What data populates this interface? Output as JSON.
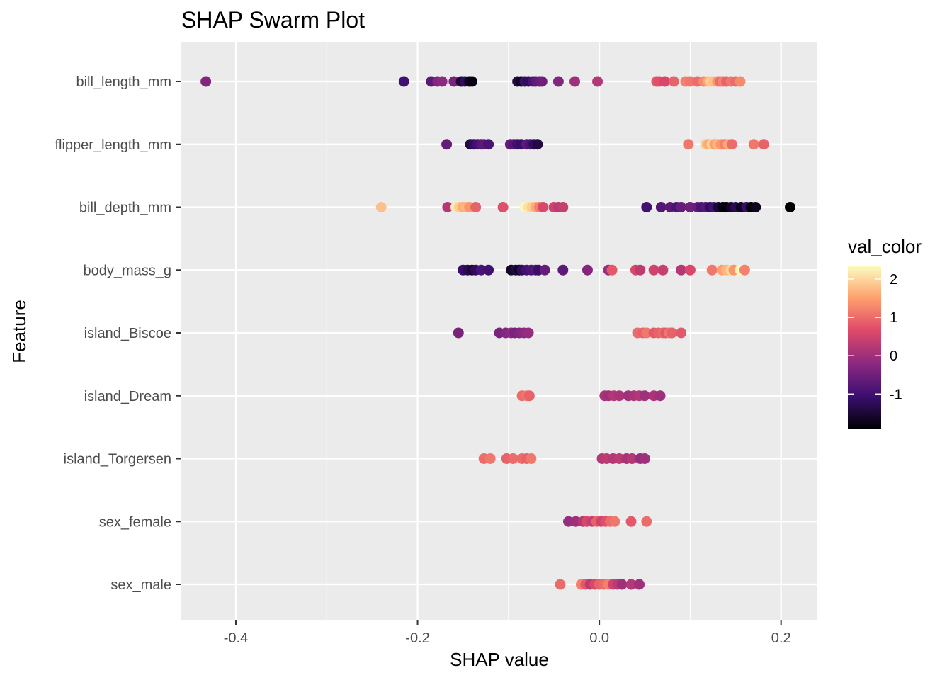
{
  "chart_data": {
    "type": "scatter",
    "title": "SHAP Swarm Plot",
    "xlabel": "SHAP value",
    "ylabel": "Feature",
    "xlim": [
      -0.46,
      0.24
    ],
    "xticks": [
      -0.4,
      -0.2,
      0.0,
      0.2
    ],
    "xtick_labels": [
      "-0.4",
      "-0.2",
      "0.0",
      "0.2"
    ],
    "grid": true,
    "legend": {
      "title": "val_color",
      "position": "right",
      "range": [
        -1.9,
        2.35
      ],
      "ticks": [
        -1,
        0,
        1,
        2
      ],
      "tick_labels": [
        "-1",
        "0",
        "1",
        "2"
      ],
      "palette": [
        "#000004",
        "#3b0f70",
        "#8c2981",
        "#de4968",
        "#fe9f6d",
        "#fcfdbf"
      ]
    },
    "categories": [
      "bill_length_mm",
      "flipper_length_mm",
      "bill_depth_mm",
      "body_mass_g",
      "island_Biscoe",
      "island_Dream",
      "island_Torgersen",
      "sex_female",
      "sex_male"
    ],
    "series": [
      {
        "feature": "bill_length_mm",
        "points": [
          [
            -0.433,
            -0.3
          ],
          [
            -0.215,
            -1.0
          ],
          [
            -0.185,
            -0.7
          ],
          [
            -0.178,
            -0.3
          ],
          [
            -0.173,
            -0.2
          ],
          [
            -0.16,
            -0.4
          ],
          [
            -0.152,
            -1.5
          ],
          [
            -0.148,
            -1.2
          ],
          [
            -0.143,
            -1.7
          ],
          [
            -0.14,
            -1.8
          ],
          [
            -0.09,
            -1.4
          ],
          [
            -0.086,
            -1.7
          ],
          [
            -0.082,
            -1.1
          ],
          [
            -0.078,
            -1.2
          ],
          [
            -0.073,
            -0.9
          ],
          [
            -0.07,
            -0.7
          ],
          [
            -0.066,
            -0.6
          ],
          [
            -0.063,
            -0.5
          ],
          [
            -0.045,
            -0.3
          ],
          [
            -0.027,
            0.0
          ],
          [
            -0.002,
            0.2
          ],
          [
            0.063,
            0.8
          ],
          [
            0.066,
            0.7
          ],
          [
            0.072,
            0.6
          ],
          [
            0.082,
            0.9
          ],
          [
            0.095,
            1.2
          ],
          [
            0.1,
            1.1
          ],
          [
            0.108,
            1.0
          ],
          [
            0.115,
            1.3
          ],
          [
            0.12,
            1.6
          ],
          [
            0.123,
            2.0
          ],
          [
            0.125,
            1.8
          ],
          [
            0.13,
            1.4
          ],
          [
            0.133,
            1.0
          ],
          [
            0.136,
            1.2
          ],
          [
            0.14,
            0.9
          ],
          [
            0.145,
            1.1
          ],
          [
            0.15,
            1.0
          ],
          [
            0.155,
            1.3
          ]
        ]
      },
      {
        "feature": "flipper_length_mm",
        "points": [
          [
            -0.168,
            -0.6
          ],
          [
            -0.142,
            -1.4
          ],
          [
            -0.138,
            -1.2
          ],
          [
            -0.134,
            -1.0
          ],
          [
            -0.13,
            -0.8
          ],
          [
            -0.127,
            -0.7
          ],
          [
            -0.122,
            -0.9
          ],
          [
            -0.098,
            -0.6
          ],
          [
            -0.094,
            -0.8
          ],
          [
            -0.09,
            -1.0
          ],
          [
            -0.086,
            -1.1
          ],
          [
            -0.08,
            -0.7
          ],
          [
            -0.076,
            -0.9
          ],
          [
            -0.072,
            -1.2
          ],
          [
            -0.068,
            -1.4
          ],
          [
            0.098,
            1.1
          ],
          [
            0.117,
            1.9
          ],
          [
            0.12,
            1.6
          ],
          [
            0.124,
            2.0
          ],
          [
            0.127,
            1.5
          ],
          [
            0.13,
            1.7
          ],
          [
            0.134,
            1.4
          ],
          [
            0.138,
            1.2
          ],
          [
            0.142,
            1.6
          ],
          [
            0.146,
            1.0
          ],
          [
            0.17,
            1.1
          ],
          [
            0.181,
            0.9
          ]
        ]
      },
      {
        "feature": "bill_depth_mm",
        "points": [
          [
            -0.24,
            1.8
          ],
          [
            -0.167,
            0.2
          ],
          [
            -0.158,
            2.2
          ],
          [
            -0.154,
            1.9
          ],
          [
            -0.15,
            1.6
          ],
          [
            -0.147,
            1.7
          ],
          [
            -0.143,
            1.4
          ],
          [
            -0.136,
            0.9
          ],
          [
            -0.106,
            0.7
          ],
          [
            -0.082,
            2.3
          ],
          [
            -0.078,
            2.1
          ],
          [
            -0.074,
            1.9
          ],
          [
            -0.07,
            1.6
          ],
          [
            -0.066,
            1.2
          ],
          [
            -0.062,
            0.6
          ],
          [
            -0.05,
            0.5
          ],
          [
            -0.045,
            0.3
          ],
          [
            -0.04,
            0.4
          ],
          [
            0.052,
            -1.0
          ],
          [
            0.068,
            -0.8
          ],
          [
            0.078,
            -0.7
          ],
          [
            0.085,
            -0.9
          ],
          [
            0.09,
            -0.6
          ],
          [
            0.1,
            -0.5
          ],
          [
            0.108,
            -0.6
          ],
          [
            0.112,
            -0.9
          ],
          [
            0.117,
            -0.8
          ],
          [
            0.122,
            -1.2
          ],
          [
            0.126,
            -1.0
          ],
          [
            0.131,
            -1.5
          ],
          [
            0.136,
            -1.8
          ],
          [
            0.14,
            -1.9
          ],
          [
            0.145,
            -1.6
          ],
          [
            0.15,
            -1.3
          ],
          [
            0.156,
            -1.7
          ],
          [
            0.162,
            -1.1
          ],
          [
            0.167,
            -1.9
          ],
          [
            0.172,
            -1.7
          ],
          [
            0.21,
            -1.9
          ]
        ]
      },
      {
        "feature": "body_mass_g",
        "points": [
          [
            -0.15,
            -1.1
          ],
          [
            -0.145,
            -1.3
          ],
          [
            -0.14,
            -1.5
          ],
          [
            -0.136,
            -1.2
          ],
          [
            -0.13,
            -0.9
          ],
          [
            -0.122,
            -1.0
          ],
          [
            -0.097,
            -1.6
          ],
          [
            -0.092,
            -1.4
          ],
          [
            -0.088,
            -1.7
          ],
          [
            -0.085,
            -1.2
          ],
          [
            -0.08,
            -1.0
          ],
          [
            -0.075,
            -0.9
          ],
          [
            -0.07,
            -0.8
          ],
          [
            -0.067,
            -1.1
          ],
          [
            -0.06,
            -0.6
          ],
          [
            -0.04,
            -0.7
          ],
          [
            -0.013,
            -0.3
          ],
          [
            0.01,
            -0.1
          ],
          [
            0.014,
            0.8
          ],
          [
            0.04,
            0.6
          ],
          [
            0.045,
            0.3
          ],
          [
            0.06,
            0.5
          ],
          [
            0.07,
            0.4
          ],
          [
            0.09,
            0.2
          ],
          [
            0.1,
            0.6
          ],
          [
            0.124,
            1.1
          ],
          [
            0.135,
            1.5
          ],
          [
            0.14,
            1.7
          ],
          [
            0.145,
            2.0
          ],
          [
            0.148,
            1.4
          ],
          [
            0.155,
            2.3
          ],
          [
            0.16,
            1.2
          ]
        ]
      },
      {
        "feature": "island_Biscoe",
        "points": [
          [
            -0.155,
            -0.4
          ],
          [
            -0.11,
            -0.4
          ],
          [
            -0.103,
            -0.3
          ],
          [
            -0.097,
            -0.2
          ],
          [
            -0.093,
            -0.4
          ],
          [
            -0.088,
            -0.3
          ],
          [
            -0.083,
            -0.2
          ],
          [
            -0.078,
            -0.1
          ],
          [
            0.042,
            1.0
          ],
          [
            0.048,
            0.9
          ],
          [
            0.052,
            1.1
          ],
          [
            0.06,
            0.8
          ],
          [
            0.065,
            0.9
          ],
          [
            0.07,
            1.0
          ],
          [
            0.073,
            0.8
          ],
          [
            0.077,
            1.1
          ],
          [
            0.08,
            0.9
          ],
          [
            0.09,
            0.8
          ]
        ]
      },
      {
        "feature": "island_Dream",
        "points": [
          [
            -0.085,
            1.0
          ],
          [
            -0.08,
            1.1
          ],
          [
            -0.077,
            0.9
          ],
          [
            0.006,
            0.1
          ],
          [
            0.01,
            0.0
          ],
          [
            0.016,
            0.2
          ],
          [
            0.022,
            0.1
          ],
          [
            0.032,
            0.0
          ],
          [
            0.038,
            0.1
          ],
          [
            0.044,
            0.2
          ],
          [
            0.05,
            0.0
          ],
          [
            0.06,
            0.1
          ],
          [
            0.067,
            0.0
          ]
        ]
      },
      {
        "feature": "island_Torgersen",
        "points": [
          [
            -0.127,
            1.0
          ],
          [
            -0.12,
            1.1
          ],
          [
            -0.102,
            0.9
          ],
          [
            -0.095,
            1.0
          ],
          [
            -0.085,
            1.0
          ],
          [
            -0.08,
            0.9
          ],
          [
            -0.075,
            1.1
          ],
          [
            0.003,
            0.2
          ],
          [
            0.008,
            0.3
          ],
          [
            0.015,
            0.2
          ],
          [
            0.022,
            0.3
          ],
          [
            0.03,
            0.1
          ],
          [
            0.036,
            0.2
          ],
          [
            0.045,
            -0.1
          ],
          [
            0.05,
            0.0
          ]
        ]
      },
      {
        "feature": "sex_female",
        "points": [
          [
            -0.034,
            -0.1
          ],
          [
            -0.026,
            0.0
          ],
          [
            -0.018,
            0.2
          ],
          [
            -0.014,
            0.6
          ],
          [
            -0.008,
            0.4
          ],
          [
            -0.003,
            0.9
          ],
          [
            0.002,
            0.5
          ],
          [
            0.007,
            0.7
          ],
          [
            0.012,
            1.0
          ],
          [
            0.017,
            1.1
          ],
          [
            0.035,
            0.8
          ],
          [
            0.052,
            1.0
          ]
        ]
      },
      {
        "feature": "sex_male",
        "points": [
          [
            -0.043,
            1.0
          ],
          [
            -0.02,
            1.2
          ],
          [
            -0.015,
            0.8
          ],
          [
            -0.01,
            0.3
          ],
          [
            -0.005,
            0.6
          ],
          [
            0.0,
            0.9
          ],
          [
            0.005,
            1.0
          ],
          [
            0.01,
            1.2
          ],
          [
            0.015,
            0.5
          ],
          [
            0.02,
            0.3
          ],
          [
            0.025,
            0.0
          ],
          [
            0.035,
            0.2
          ],
          [
            0.044,
            0.0
          ]
        ]
      }
    ]
  }
}
